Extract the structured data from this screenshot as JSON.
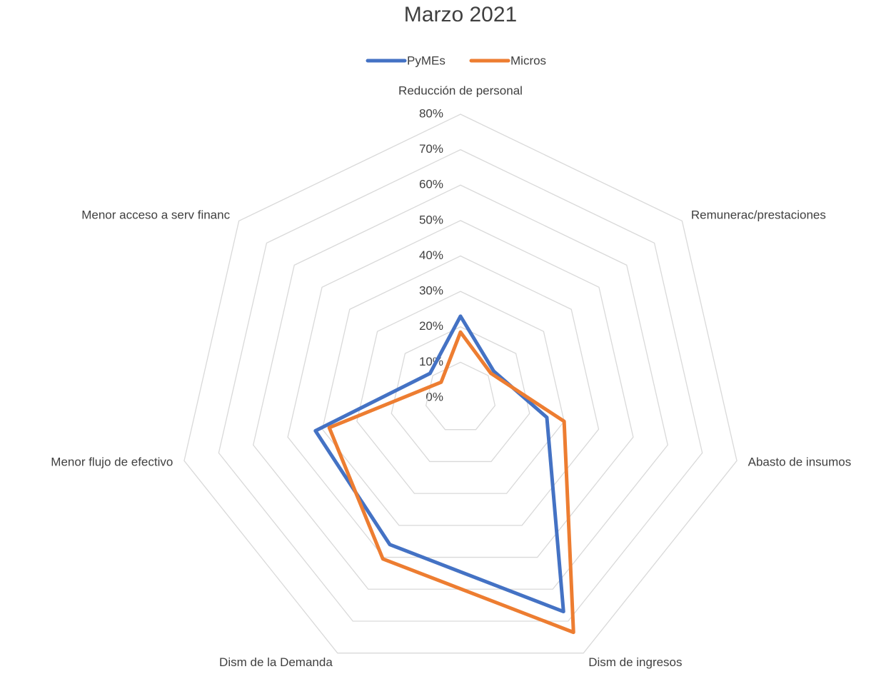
{
  "chart_data": {
    "type": "radar",
    "title": "Marzo 2021",
    "categories": [
      "Reducción de personal",
      "Remunerac/prestaciones",
      "Abasto de insumos",
      "Dism de ingresos",
      "Dism de la Demanda",
      "Menor flujo de efectivo",
      "Menor acceso a serv financ"
    ],
    "series": [
      {
        "name": "PyMEs",
        "color": "#4472c4",
        "values": [
          23,
          12,
          25,
          67,
          46,
          42,
          11
        ]
      },
      {
        "name": "Micros",
        "color": "#ed7d31",
        "values": [
          18.5,
          11,
          30,
          73.5,
          50.5,
          38,
          7
        ]
      }
    ],
    "rlim": [
      0,
      80
    ],
    "rticks": [
      {
        "value": 0,
        "label": "0%"
      },
      {
        "value": 10,
        "label": "10%"
      },
      {
        "value": 20,
        "label": "20%"
      },
      {
        "value": 30,
        "label": "30%"
      },
      {
        "value": 40,
        "label": "40%"
      },
      {
        "value": 50,
        "label": "50%"
      },
      {
        "value": 60,
        "label": "60%"
      },
      {
        "value": 70,
        "label": "70%"
      },
      {
        "value": 80,
        "label": "80%"
      }
    ],
    "grid": true,
    "legend": "top"
  }
}
